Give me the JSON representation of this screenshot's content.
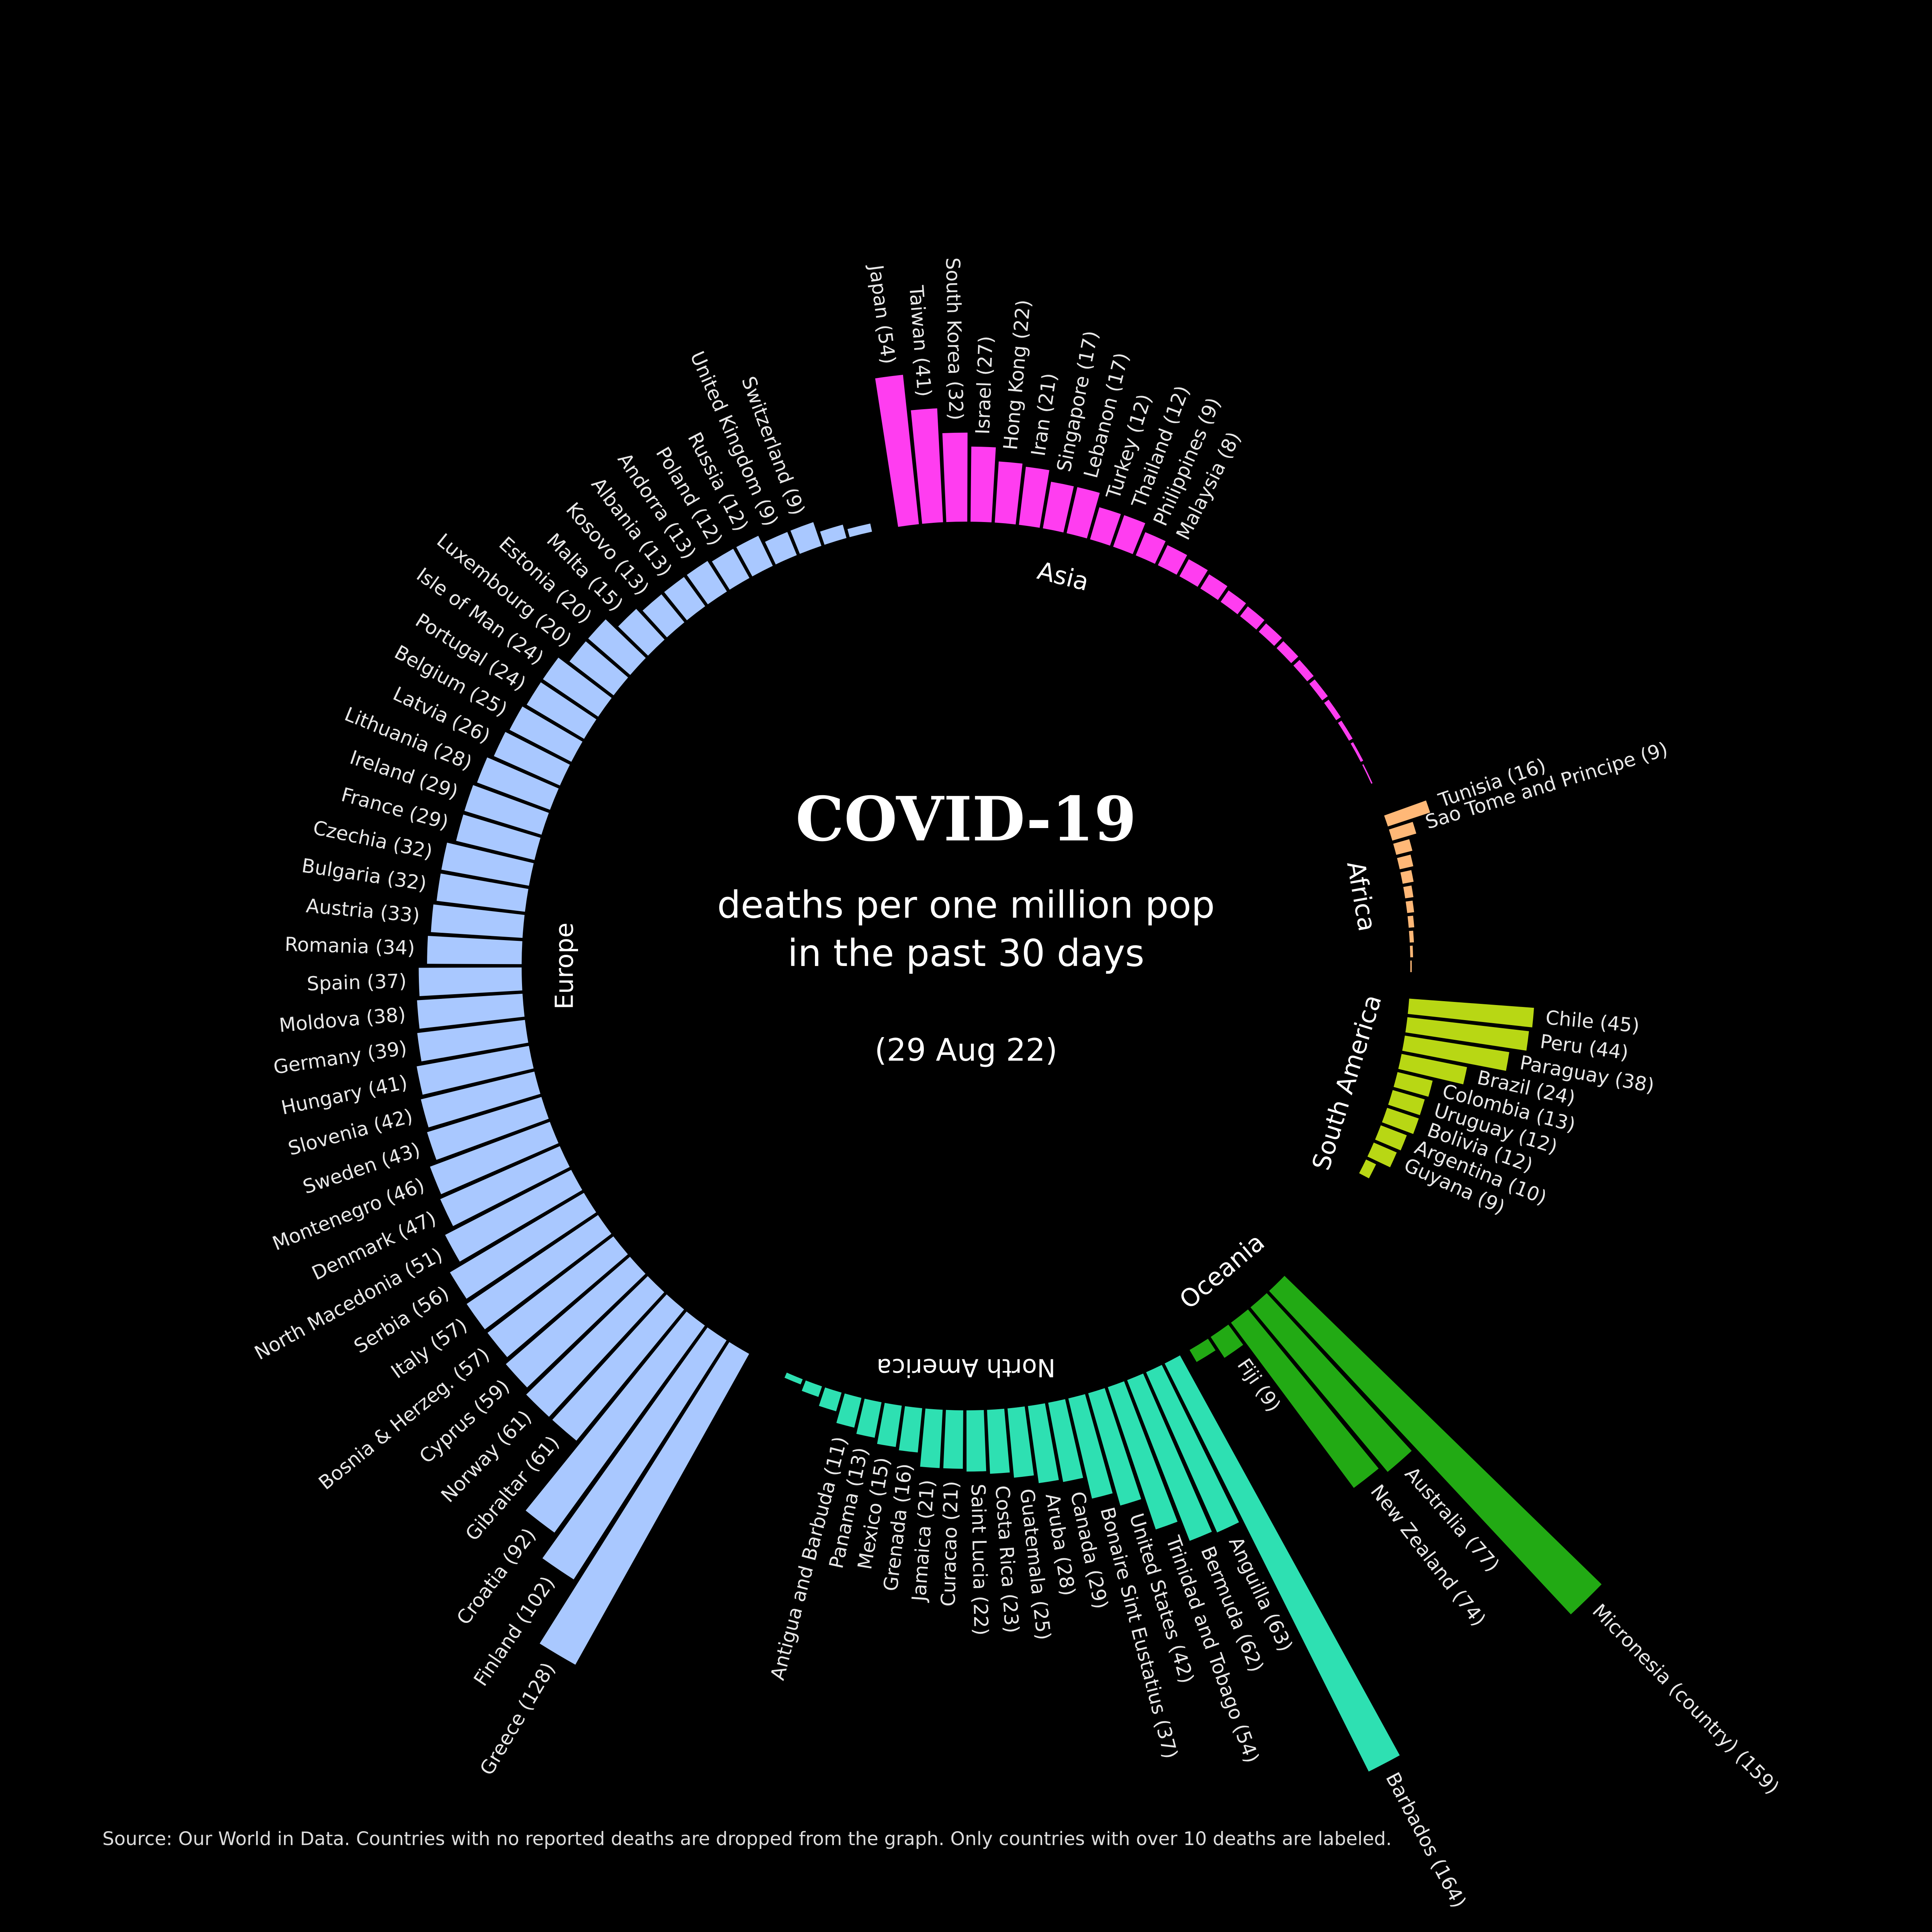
{
  "title": "COVID-19",
  "subtitle_line1": "deaths per one million pop",
  "subtitle_line2": "in the past 30 days",
  "date": "(29 Aug 22)",
  "source": "Source: Our World in Data. Countries with no reported deaths are dropped from the graph. Only countries with over 10 deaths are labeled.",
  "chart_data": {
    "type": "bar",
    "layout": "circular",
    "regions": [
      {
        "name": "Asia",
        "color": "#ff3df0",
        "bars": [
          {
            "value": 54,
            "label": "Japan (54)"
          },
          {
            "value": 41,
            "label": "Taiwan (41)"
          },
          {
            "value": 32,
            "label": "South Korea (32)"
          },
          {
            "value": 27,
            "label": "Israel (27)"
          },
          {
            "value": 22,
            "label": "Hong Kong (22)"
          },
          {
            "value": 21,
            "label": "Iran (21)"
          },
          {
            "value": 17,
            "label": "Singapore (17)"
          },
          {
            "value": 17,
            "label": "Lebanon (17)"
          },
          {
            "value": 12,
            "label": "Turkey (12)"
          },
          {
            "value": 12,
            "label": "Thailand (12)"
          },
          {
            "value": 9,
            "label": "Philippines (9)"
          },
          {
            "value": 8,
            "label": "Malaysia (8)"
          },
          {
            "value": 7
          },
          {
            "value": 6
          },
          {
            "value": 5
          },
          {
            "value": 4.5
          },
          {
            "value": 4
          },
          {
            "value": 3.5
          },
          {
            "value": 3
          },
          {
            "value": 2.5
          },
          {
            "value": 2
          },
          {
            "value": 1.5
          },
          {
            "value": 1
          },
          {
            "value": 0.5
          }
        ]
      },
      {
        "name": "Africa",
        "color": "#ffb877",
        "bars": [
          {
            "value": 16,
            "label": "Tunisia (16)"
          },
          {
            "value": 9,
            "label": "Sao Tome and Principe (9)"
          },
          {
            "value": 6
          },
          {
            "value": 5
          },
          {
            "value": 4
          },
          {
            "value": 3
          },
          {
            "value": 2.5
          },
          {
            "value": 2
          },
          {
            "value": 1.5
          },
          {
            "value": 1
          },
          {
            "value": 0.5
          }
        ]
      },
      {
        "name": "South America",
        "color": "#b8d714",
        "bars": [
          {
            "value": 45,
            "label": "Chile (45)"
          },
          {
            "value": 44,
            "label": "Peru (44)"
          },
          {
            "value": 38,
            "label": "Paraguay (38)"
          },
          {
            "value": 24,
            "label": "Brazil (24)"
          },
          {
            "value": 13,
            "label": "Colombia (13)"
          },
          {
            "value": 12,
            "label": "Uruguay (12)"
          },
          {
            "value": 12,
            "label": "Bolivia (12)"
          },
          {
            "value": 10,
            "label": "Argentina (10)"
          },
          {
            "value": 9,
            "label": "Guyana (9)"
          },
          {
            "value": 4
          }
        ]
      },
      {
        "name": "Oceania",
        "color": "#22aa14",
        "bars": [
          {
            "value": 159,
            "label": "Micronesia (country) (159)"
          },
          {
            "value": 77,
            "label": "Australia (77)"
          },
          {
            "value": 74,
            "label": "New Zealand (74)"
          },
          {
            "value": 9,
            "label": "Fiji (9)"
          },
          {
            "value": 5
          }
        ]
      },
      {
        "name": "North America",
        "color": "#2ee0b2",
        "bars": [
          {
            "value": 164,
            "label": "Barbados (164)"
          },
          {
            "value": 63,
            "label": "Anguilla (63)"
          },
          {
            "value": 62,
            "label": "Bermuda (62)"
          },
          {
            "value": 54,
            "label": "Trinidad and Tobago (54)"
          },
          {
            "value": 42,
            "label": "United States (42)"
          },
          {
            "value": 37,
            "label": "Bonaire Sint Eustatius (37)"
          },
          {
            "value": 29,
            "label": "Canada (29)"
          },
          {
            "value": 28,
            "label": "Aruba (28)"
          },
          {
            "value": 25,
            "label": "Guatemala (25)"
          },
          {
            "value": 23,
            "label": "Costa Rica (23)"
          },
          {
            "value": 22,
            "label": "Saint Lucia (22)"
          },
          {
            "value": 21,
            "label": "Curacao (21)"
          },
          {
            "value": 21,
            "label": "Jamaica (21)"
          },
          {
            "value": 16,
            "label": "Grenada (16)"
          },
          {
            "value": 15,
            "label": "Mexico (15)"
          },
          {
            "value": 13,
            "label": "Panama (13)"
          },
          {
            "value": 11,
            "label": "Antigua and Barbuda (11)"
          },
          {
            "value": 7
          },
          {
            "value": 4
          },
          {
            "value": 2
          }
        ]
      },
      {
        "name": "Europe",
        "color": "#a9c8ff",
        "bars": [
          {
            "value": 128,
            "label": "Greece (128)"
          },
          {
            "value": 102,
            "label": "Finland (102)"
          },
          {
            "value": 92,
            "label": "Croatia (92)"
          },
          {
            "value": 61,
            "label": "Gibraltar (61)"
          },
          {
            "value": 61,
            "label": "Norway (61)"
          },
          {
            "value": 59,
            "label": "Cyprus (59)"
          },
          {
            "value": 57,
            "label": "Bosnia & Herzeg. (57)"
          },
          {
            "value": 57,
            "label": "Italy (57)"
          },
          {
            "value": 56,
            "label": "Serbia (56)"
          },
          {
            "value": 51,
            "label": "North Macedonia (51)"
          },
          {
            "value": 47,
            "label": "Denmark (47)"
          },
          {
            "value": 46,
            "label": "Montenegro (46)"
          },
          {
            "value": 43,
            "label": "Sweden (43)"
          },
          {
            "value": 42,
            "label": "Slovenia (42)"
          },
          {
            "value": 41,
            "label": "Hungary (41)"
          },
          {
            "value": 39,
            "label": "Germany (39)"
          },
          {
            "value": 38,
            "label": "Moldova (38)"
          },
          {
            "value": 37,
            "label": "Spain (37)"
          },
          {
            "value": 34,
            "label": "Romania (34)"
          },
          {
            "value": 33,
            "label": "Austria (33)"
          },
          {
            "value": 32,
            "label": "Bulgaria (32)"
          },
          {
            "value": 32,
            "label": "Czechia (32)"
          },
          {
            "value": 29,
            "label": "France (29)"
          },
          {
            "value": 29,
            "label": "Ireland (29)"
          },
          {
            "value": 28,
            "label": "Lithuania (28)"
          },
          {
            "value": 26,
            "label": "Latvia (26)"
          },
          {
            "value": 25,
            "label": "Belgium (25)"
          },
          {
            "value": 24,
            "label": "Portugal (24)"
          },
          {
            "value": 24,
            "label": "Isle of Man (24)"
          },
          {
            "value": 20,
            "label": "Luxembourg (20)"
          },
          {
            "value": 20,
            "label": "Estonia (20)"
          },
          {
            "value": 15,
            "label": "Malta (15)"
          },
          {
            "value": 13,
            "label": "Kosovo (13)"
          },
          {
            "value": 13,
            "label": "Albania (13)"
          },
          {
            "value": 13,
            "label": "Andorra (13)"
          },
          {
            "value": 12,
            "label": "Poland (12)"
          },
          {
            "value": 12,
            "label": "Russia (12)"
          },
          {
            "value": 9,
            "label": "United Kingdom (9)"
          },
          {
            "value": 9,
            "label": "Switzerland (9)"
          },
          {
            "value": 5
          },
          {
            "value": 3
          }
        ]
      }
    ]
  }
}
